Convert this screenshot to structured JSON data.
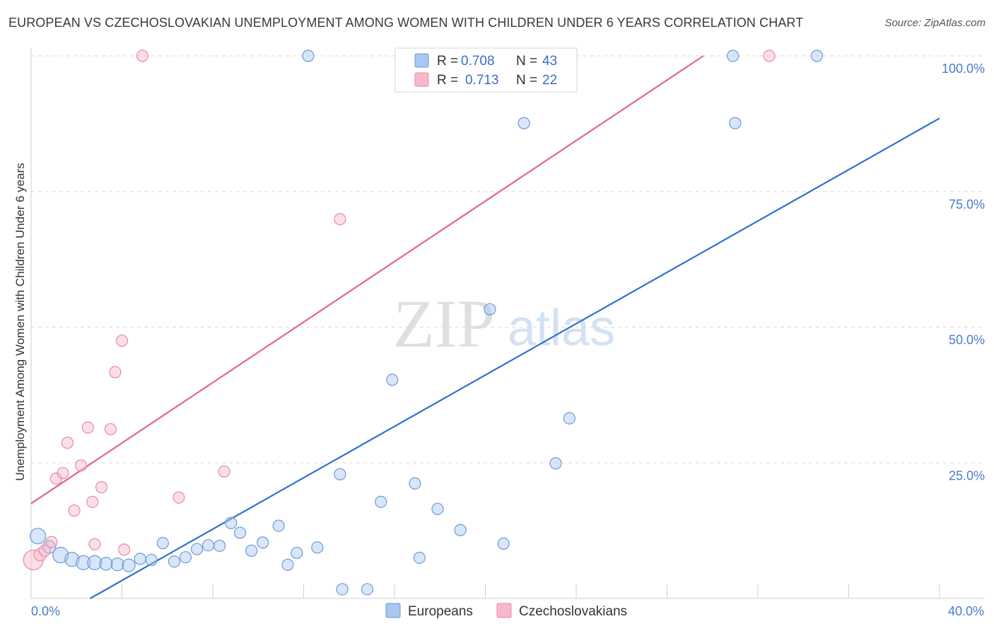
{
  "title": "EUROPEAN VS CZECHOSLOVAKIAN UNEMPLOYMENT AMONG WOMEN WITH CHILDREN UNDER 6 YEARS CORRELATION CHART",
  "source": "Source: ZipAtlas.com",
  "watermark": {
    "zip": "ZIP",
    "atlas": "atlas"
  },
  "colors": {
    "blue_fill": "#a9c7ef",
    "blue_stroke": "#6b9bd8",
    "blue_line": "#2f6fcf",
    "pink_fill": "#f7b8cb",
    "pink_stroke": "#e88aa7",
    "pink_line": "#e0668f",
    "tick": "#4a7cc9",
    "grid": "#d9d9d9"
  },
  "legend": {
    "rows": [
      {
        "r_label": "R =",
        "r_value": "0.708",
        "n_label": "N =",
        "n_value": "43",
        "series": "blue"
      },
      {
        "r_label": "R =",
        "r_value": "0.713",
        "n_label": "N =",
        "n_value": "22",
        "series": "pink"
      }
    ]
  },
  "chart_data": {
    "type": "scatter",
    "title": "EUROPEAN VS CZECHOSLOVAKIAN UNEMPLOYMENT AMONG WOMEN WITH CHILDREN UNDER 6 YEARS CORRELATION CHART",
    "xlabel": "",
    "ylabel": "Unemployment Among Women with Children Under 6 years",
    "xlim": [
      0,
      40
    ],
    "ylim": [
      0,
      100
    ],
    "x_tick_labels": [
      "0.0%",
      "40.0%"
    ],
    "y_ticks": [
      25,
      50,
      75,
      100
    ],
    "y_tick_labels": [
      "25.0%",
      "50.0%",
      "75.0%",
      "100.0%"
    ],
    "grid": true,
    "legend_position": "bottom-center",
    "series": [
      {
        "name": "Europeans",
        "color": "blue",
        "trendline": {
          "x": [
            2.6,
            40
          ],
          "y": [
            0,
            88.5
          ]
        },
        "points": [
          {
            "x": 0.3,
            "y": 11.5,
            "r": 11
          },
          {
            "x": 0.8,
            "y": 9.5,
            "r": 9
          },
          {
            "x": 1.3,
            "y": 8,
            "r": 11
          },
          {
            "x": 1.8,
            "y": 7.2,
            "r": 10
          },
          {
            "x": 2.3,
            "y": 6.6,
            "r": 10
          },
          {
            "x": 2.8,
            "y": 6.6,
            "r": 10
          },
          {
            "x": 3.3,
            "y": 6.4,
            "r": 9
          },
          {
            "x": 3.8,
            "y": 6.3,
            "r": 9
          },
          {
            "x": 4.3,
            "y": 6.1,
            "r": 9
          },
          {
            "x": 4.8,
            "y": 7.3,
            "r": 8
          },
          {
            "x": 5.3,
            "y": 7.1,
            "r": 8
          },
          {
            "x": 5.8,
            "y": 10.2,
            "r": 8
          },
          {
            "x": 6.3,
            "y": 6.8,
            "r": 8
          },
          {
            "x": 6.8,
            "y": 7.6,
            "r": 8
          },
          {
            "x": 7.3,
            "y": 9.1,
            "r": 8
          },
          {
            "x": 7.8,
            "y": 9.8,
            "r": 8
          },
          {
            "x": 8.3,
            "y": 9.7,
            "r": 8
          },
          {
            "x": 8.8,
            "y": 13.9,
            "r": 8
          },
          {
            "x": 9.2,
            "y": 12.1,
            "r": 8
          },
          {
            "x": 9.7,
            "y": 8.8,
            "r": 8
          },
          {
            "x": 10.2,
            "y": 10.3,
            "r": 8
          },
          {
            "x": 10.9,
            "y": 13.4,
            "r": 8
          },
          {
            "x": 11.3,
            "y": 6.2,
            "r": 8
          },
          {
            "x": 11.7,
            "y": 8.4,
            "r": 8
          },
          {
            "x": 12.6,
            "y": 9.4,
            "r": 8
          },
          {
            "x": 12.2,
            "y": 100,
            "r": 8
          },
          {
            "x": 13.6,
            "y": 22.9,
            "r": 8
          },
          {
            "x": 13.7,
            "y": 1.7,
            "r": 8
          },
          {
            "x": 14.8,
            "y": 1.7,
            "r": 8
          },
          {
            "x": 15.4,
            "y": 17.8,
            "r": 8
          },
          {
            "x": 15.9,
            "y": 40.3,
            "r": 8
          },
          {
            "x": 16.9,
            "y": 21.2,
            "r": 8
          },
          {
            "x": 17.1,
            "y": 7.5,
            "r": 8
          },
          {
            "x": 17.9,
            "y": 16.5,
            "r": 8
          },
          {
            "x": 18.9,
            "y": 12.6,
            "r": 8
          },
          {
            "x": 20.2,
            "y": 53.3,
            "r": 8
          },
          {
            "x": 20.8,
            "y": 10.1,
            "r": 8
          },
          {
            "x": 21.7,
            "y": 87.6,
            "r": 8
          },
          {
            "x": 23.1,
            "y": 24.9,
            "r": 8
          },
          {
            "x": 23.7,
            "y": 33.2,
            "r": 8
          },
          {
            "x": 30.9,
            "y": 100,
            "r": 8
          },
          {
            "x": 31.0,
            "y": 87.6,
            "r": 8
          },
          {
            "x": 34.6,
            "y": 100,
            "r": 8
          }
        ]
      },
      {
        "name": "Czechoslovakians",
        "color": "pink",
        "trendline": {
          "x": [
            0,
            29.6
          ],
          "y": [
            17.5,
            100
          ]
        },
        "points": [
          {
            "x": 0.1,
            "y": 7.1,
            "r": 14
          },
          {
            "x": 0.4,
            "y": 8.1,
            "r": 9
          },
          {
            "x": 0.6,
            "y": 8.8,
            "r": 8
          },
          {
            "x": 0.9,
            "y": 10.4,
            "r": 8
          },
          {
            "x": 1.1,
            "y": 22.1,
            "r": 8
          },
          {
            "x": 1.4,
            "y": 23.1,
            "r": 8
          },
          {
            "x": 1.6,
            "y": 28.7,
            "r": 8
          },
          {
            "x": 1.9,
            "y": 16.2,
            "r": 8
          },
          {
            "x": 2.2,
            "y": 24.5,
            "r": 8
          },
          {
            "x": 2.5,
            "y": 31.5,
            "r": 8
          },
          {
            "x": 2.7,
            "y": 17.8,
            "r": 8
          },
          {
            "x": 2.8,
            "y": 10,
            "r": 8
          },
          {
            "x": 3.1,
            "y": 20.5,
            "r": 8
          },
          {
            "x": 3.5,
            "y": 31.2,
            "r": 8
          },
          {
            "x": 3.7,
            "y": 41.7,
            "r": 8
          },
          {
            "x": 4.0,
            "y": 47.5,
            "r": 8
          },
          {
            "x": 4.1,
            "y": 9,
            "r": 8
          },
          {
            "x": 4.9,
            "y": 100,
            "r": 8
          },
          {
            "x": 6.5,
            "y": 18.6,
            "r": 8
          },
          {
            "x": 8.5,
            "y": 23.4,
            "r": 8
          },
          {
            "x": 13.6,
            "y": 69.9,
            "r": 8
          },
          {
            "x": 32.5,
            "y": 100,
            "r": 8
          }
        ]
      }
    ]
  }
}
